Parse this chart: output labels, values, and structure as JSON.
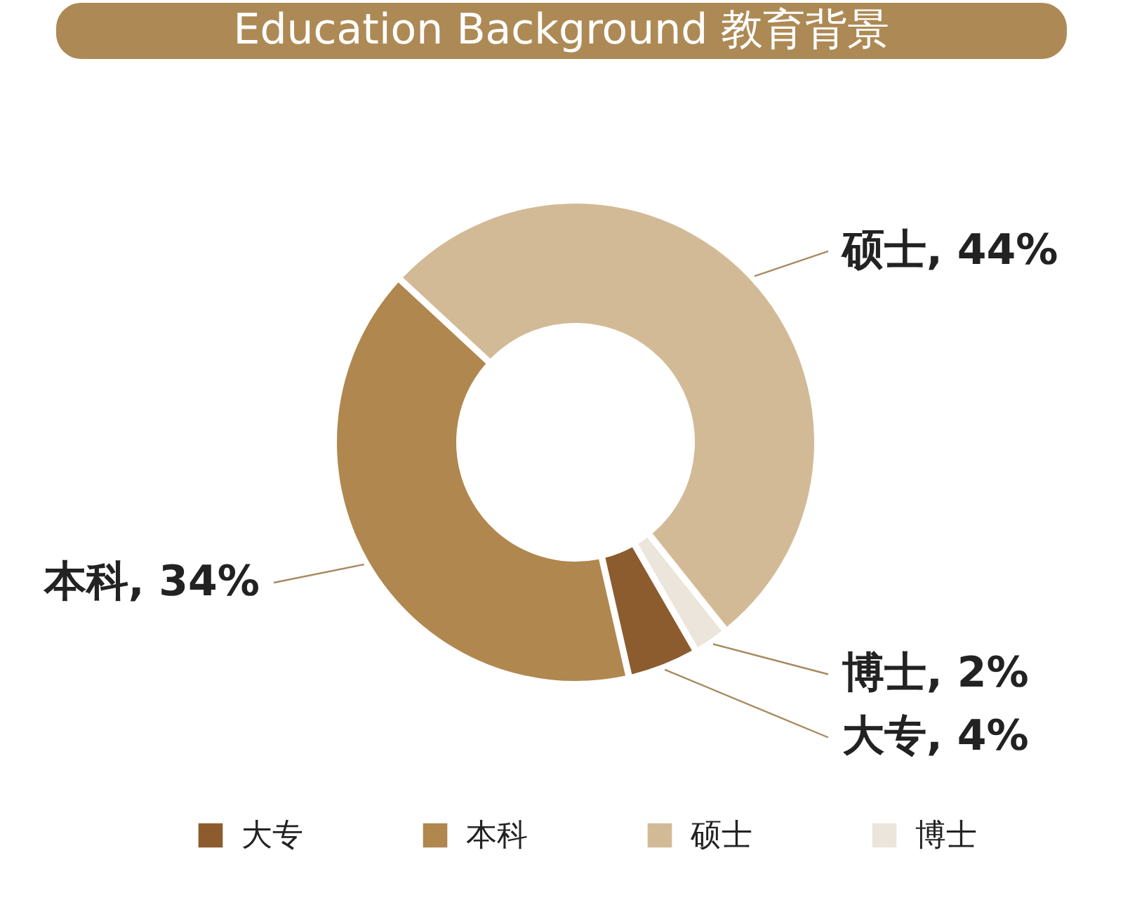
{
  "chart_data": {
    "type": "donut",
    "title": "Education Background 教育背景",
    "categories": [
      "大专",
      "本科",
      "硕士",
      "博士"
    ],
    "values": [
      4,
      34,
      44,
      2
    ],
    "colors": [
      "#8c5c2e",
      "#b0874f",
      "#d3ba96",
      "#ece5dc"
    ],
    "value_labels": [
      "大专, 4%",
      "本科, 34%",
      "硕士, 44%",
      "博士, 2%"
    ],
    "legend": "bottom"
  }
}
